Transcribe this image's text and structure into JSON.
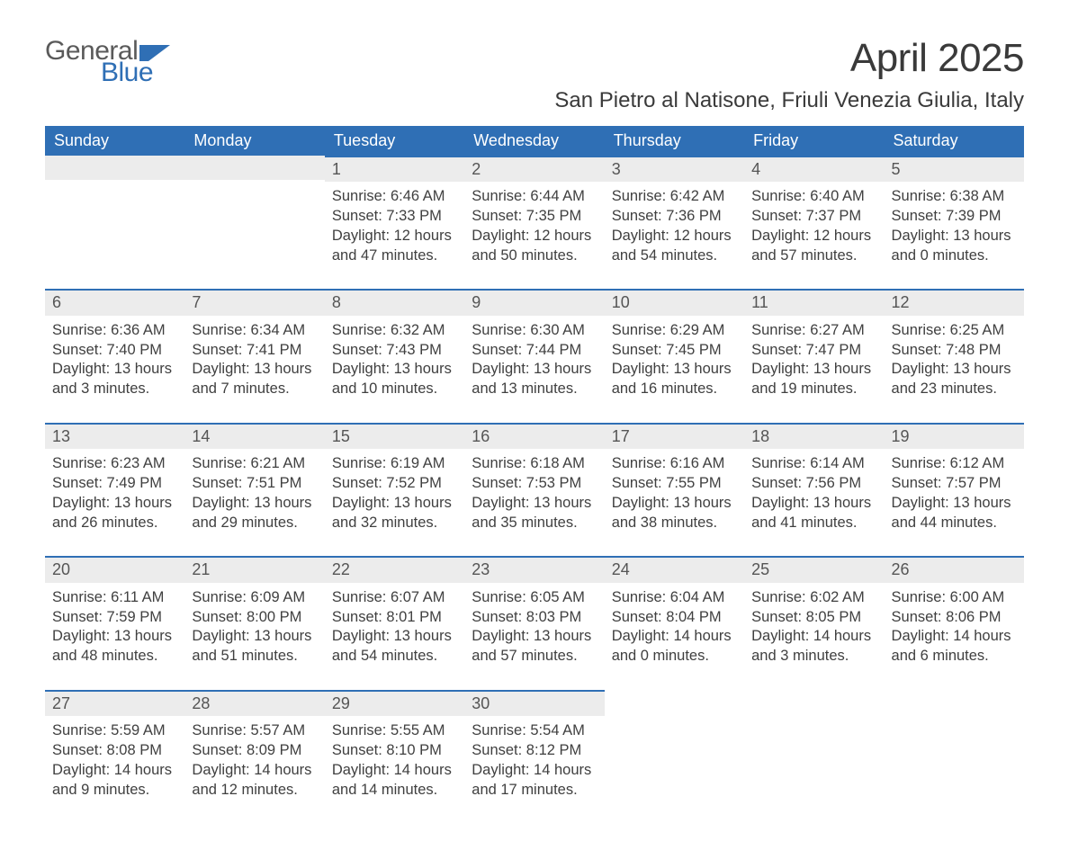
{
  "logo": {
    "text1": "General",
    "text2": "Blue",
    "icon_color": "#2f6fb5",
    "text1_color": "#5a5a5a"
  },
  "title": "April 2025",
  "location": "San Pietro al Natisone, Friuli Venezia Giulia, Italy",
  "colors": {
    "header_bg": "#2f6fb5",
    "header_text": "#ffffff",
    "daynum_bg": "#ececec",
    "daynum_border": "#2f6fb5",
    "body_text": "#404040",
    "page_bg": "#ffffff"
  },
  "fonts": {
    "title_pt": 44,
    "location_pt": 24,
    "weekday_pt": 18,
    "daynum_pt": 18,
    "detail_pt": 16.5
  },
  "weekdays": [
    "Sunday",
    "Monday",
    "Tuesday",
    "Wednesday",
    "Thursday",
    "Friday",
    "Saturday"
  ],
  "first_weekday_index": 2,
  "days": [
    {
      "n": 1,
      "sunrise": "6:46 AM",
      "sunset": "7:33 PM",
      "dl_h": 12,
      "dl_m": 47
    },
    {
      "n": 2,
      "sunrise": "6:44 AM",
      "sunset": "7:35 PM",
      "dl_h": 12,
      "dl_m": 50
    },
    {
      "n": 3,
      "sunrise": "6:42 AM",
      "sunset": "7:36 PM",
      "dl_h": 12,
      "dl_m": 54
    },
    {
      "n": 4,
      "sunrise": "6:40 AM",
      "sunset": "7:37 PM",
      "dl_h": 12,
      "dl_m": 57
    },
    {
      "n": 5,
      "sunrise": "6:38 AM",
      "sunset": "7:39 PM",
      "dl_h": 13,
      "dl_m": 0
    },
    {
      "n": 6,
      "sunrise": "6:36 AM",
      "sunset": "7:40 PM",
      "dl_h": 13,
      "dl_m": 3
    },
    {
      "n": 7,
      "sunrise": "6:34 AM",
      "sunset": "7:41 PM",
      "dl_h": 13,
      "dl_m": 7
    },
    {
      "n": 8,
      "sunrise": "6:32 AM",
      "sunset": "7:43 PM",
      "dl_h": 13,
      "dl_m": 10
    },
    {
      "n": 9,
      "sunrise": "6:30 AM",
      "sunset": "7:44 PM",
      "dl_h": 13,
      "dl_m": 13
    },
    {
      "n": 10,
      "sunrise": "6:29 AM",
      "sunset": "7:45 PM",
      "dl_h": 13,
      "dl_m": 16
    },
    {
      "n": 11,
      "sunrise": "6:27 AM",
      "sunset": "7:47 PM",
      "dl_h": 13,
      "dl_m": 19
    },
    {
      "n": 12,
      "sunrise": "6:25 AM",
      "sunset": "7:48 PM",
      "dl_h": 13,
      "dl_m": 23
    },
    {
      "n": 13,
      "sunrise": "6:23 AM",
      "sunset": "7:49 PM",
      "dl_h": 13,
      "dl_m": 26
    },
    {
      "n": 14,
      "sunrise": "6:21 AM",
      "sunset": "7:51 PM",
      "dl_h": 13,
      "dl_m": 29
    },
    {
      "n": 15,
      "sunrise": "6:19 AM",
      "sunset": "7:52 PM",
      "dl_h": 13,
      "dl_m": 32
    },
    {
      "n": 16,
      "sunrise": "6:18 AM",
      "sunset": "7:53 PM",
      "dl_h": 13,
      "dl_m": 35
    },
    {
      "n": 17,
      "sunrise": "6:16 AM",
      "sunset": "7:55 PM",
      "dl_h": 13,
      "dl_m": 38
    },
    {
      "n": 18,
      "sunrise": "6:14 AM",
      "sunset": "7:56 PM",
      "dl_h": 13,
      "dl_m": 41
    },
    {
      "n": 19,
      "sunrise": "6:12 AM",
      "sunset": "7:57 PM",
      "dl_h": 13,
      "dl_m": 44
    },
    {
      "n": 20,
      "sunrise": "6:11 AM",
      "sunset": "7:59 PM",
      "dl_h": 13,
      "dl_m": 48
    },
    {
      "n": 21,
      "sunrise": "6:09 AM",
      "sunset": "8:00 PM",
      "dl_h": 13,
      "dl_m": 51
    },
    {
      "n": 22,
      "sunrise": "6:07 AM",
      "sunset": "8:01 PM",
      "dl_h": 13,
      "dl_m": 54
    },
    {
      "n": 23,
      "sunrise": "6:05 AM",
      "sunset": "8:03 PM",
      "dl_h": 13,
      "dl_m": 57
    },
    {
      "n": 24,
      "sunrise": "6:04 AM",
      "sunset": "8:04 PM",
      "dl_h": 14,
      "dl_m": 0
    },
    {
      "n": 25,
      "sunrise": "6:02 AM",
      "sunset": "8:05 PM",
      "dl_h": 14,
      "dl_m": 3
    },
    {
      "n": 26,
      "sunrise": "6:00 AM",
      "sunset": "8:06 PM",
      "dl_h": 14,
      "dl_m": 6
    },
    {
      "n": 27,
      "sunrise": "5:59 AM",
      "sunset": "8:08 PM",
      "dl_h": 14,
      "dl_m": 9
    },
    {
      "n": 28,
      "sunrise": "5:57 AM",
      "sunset": "8:09 PM",
      "dl_h": 14,
      "dl_m": 12
    },
    {
      "n": 29,
      "sunrise": "5:55 AM",
      "sunset": "8:10 PM",
      "dl_h": 14,
      "dl_m": 14
    },
    {
      "n": 30,
      "sunrise": "5:54 AM",
      "sunset": "8:12 PM",
      "dl_h": 14,
      "dl_m": 17
    }
  ],
  "labels": {
    "sunrise": "Sunrise",
    "sunset": "Sunset",
    "daylight": "Daylight",
    "hours": "hours",
    "and": "and",
    "minutes": "minutes"
  }
}
